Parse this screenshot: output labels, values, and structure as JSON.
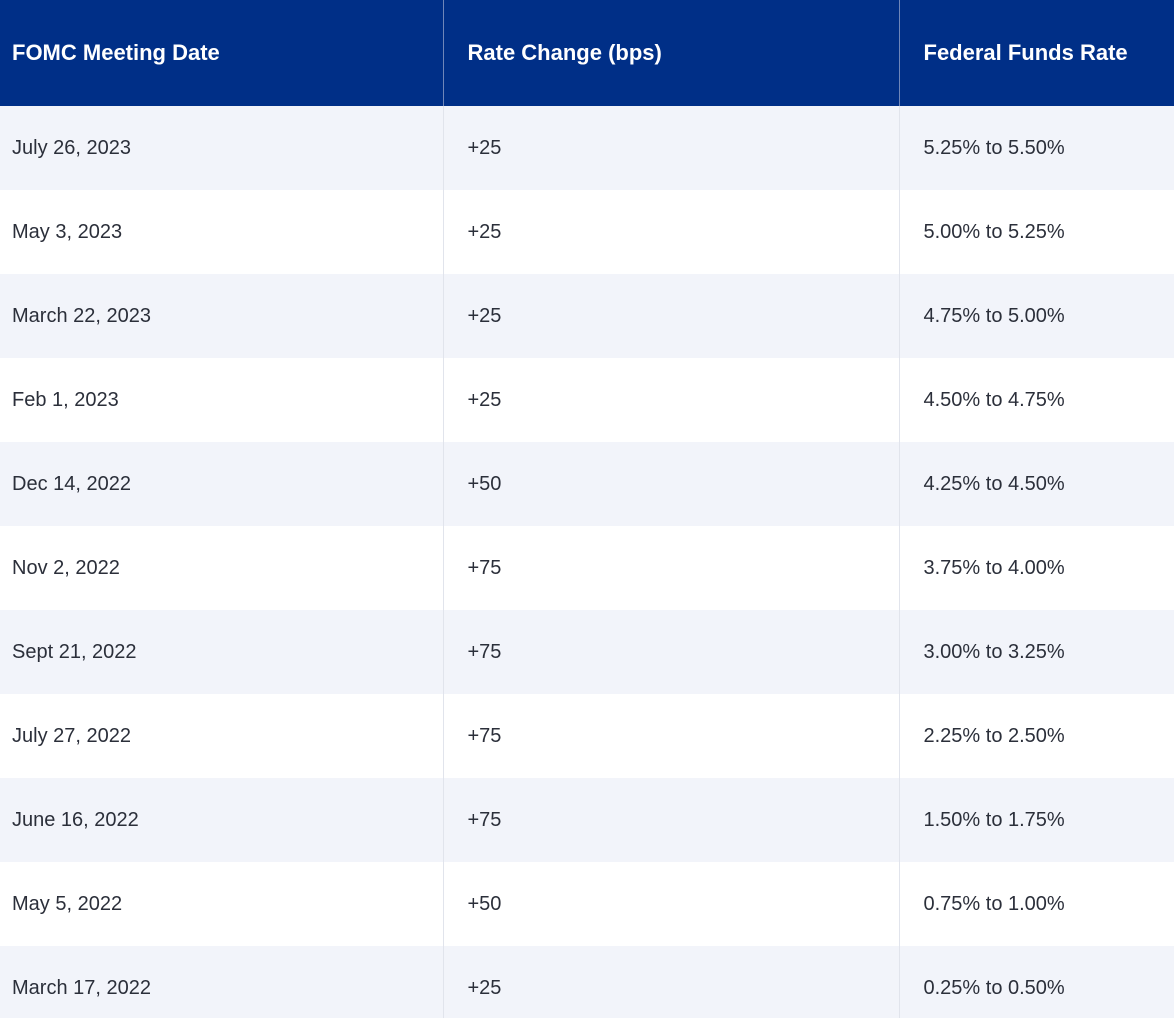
{
  "table": {
    "headers": [
      "FOMC Meeting Date",
      "Rate Change (bps)",
      "Federal Funds Rate"
    ],
    "rows": [
      [
        "July 26, 2023",
        "+25",
        "5.25% to 5.50%"
      ],
      [
        "May 3, 2023",
        "+25",
        "5.00% to 5.25%"
      ],
      [
        "March 22, 2023",
        "+25",
        "4.75% to 5.00%"
      ],
      [
        "Feb 1, 2023",
        "+25",
        "4.50% to 4.75%"
      ],
      [
        "Dec 14, 2022",
        "+50",
        "4.25% to 4.50%"
      ],
      [
        "Nov 2, 2022",
        "+75",
        "3.75% to 4.00%"
      ],
      [
        "Sept 21, 2022",
        "+75",
        "3.00% to 3.25%"
      ],
      [
        "July 27, 2022",
        "+75",
        "2.25% to 2.50%"
      ],
      [
        "June 16, 2022",
        "+75",
        "1.50% to 1.75%"
      ],
      [
        "May 5, 2022",
        "+50",
        "0.75% to 1.00%"
      ],
      [
        "March 17, 2022",
        "+25",
        "0.25% to 0.50%"
      ]
    ]
  },
  "colors": {
    "header_bg": "#002F87",
    "header_text": "#FFFFFF",
    "row_alt_bg": "#F2F4FA",
    "row_bg": "#FFFFFF",
    "cell_text": "#2B2F3A"
  }
}
